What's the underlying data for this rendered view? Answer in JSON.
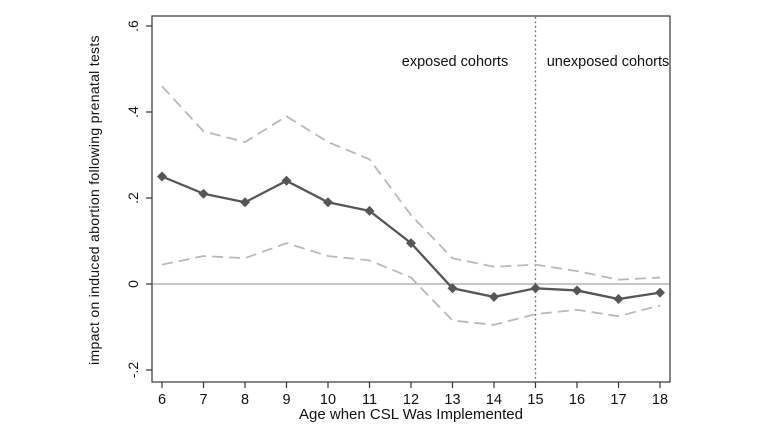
{
  "chart_data": {
    "type": "line",
    "title": "",
    "xlabel": "Age when CSL Was Implemented",
    "ylabel": "impact on induced abortion following prenatal tests",
    "x": [
      6,
      7,
      8,
      9,
      10,
      11,
      12,
      13,
      14,
      15,
      16,
      17,
      18
    ],
    "series": [
      {
        "name": "point-estimate",
        "style": "solid",
        "marker": "diamond",
        "color": "#565656",
        "values": [
          0.25,
          0.21,
          0.19,
          0.24,
          0.19,
          0.17,
          0.095,
          -0.01,
          -0.03,
          -0.01,
          -0.015,
          -0.035,
          -0.02
        ]
      },
      {
        "name": "upper-confidence-bound",
        "style": "dashed",
        "marker": "none",
        "color": "#b9b9b9",
        "values": [
          0.46,
          0.355,
          0.33,
          0.39,
          0.33,
          0.29,
          0.16,
          0.06,
          0.04,
          0.045,
          0.03,
          0.01,
          0.015
        ]
      },
      {
        "name": "lower-confidence-bound",
        "style": "dashed",
        "marker": "none",
        "color": "#b9b9b9",
        "values": [
          0.045,
          0.065,
          0.06,
          0.095,
          0.065,
          0.055,
          0.015,
          -0.085,
          -0.095,
          -0.07,
          -0.06,
          -0.075,
          -0.05
        ]
      }
    ],
    "xlim": [
      6,
      18
    ],
    "ylim": [
      -0.23,
      0.62
    ],
    "xtick_labels": [
      "6",
      "7",
      "8",
      "9",
      "10",
      "11",
      "12",
      "13",
      "14",
      "15",
      "16",
      "17",
      "18"
    ],
    "ytick_values": [
      0.6,
      0.4,
      0.2,
      0,
      -0.2
    ],
    "ytick_labels": [
      ".6",
      ".4",
      ".2",
      "0",
      "-.2"
    ],
    "grid": false,
    "legend": "none",
    "reference_lines": {
      "horizontal_y": 0,
      "vertical_x": 15,
      "vertical_style": "dotted"
    },
    "annotations": [
      {
        "text": "exposed cohorts",
        "x": 13.05,
        "y": 0.52
      },
      {
        "text": "unexposed cohorts",
        "x": 16.75,
        "y": 0.52
      }
    ]
  },
  "colors": {
    "background": "#ffffff",
    "frame": "#363636",
    "zero_line": "#8f8f8f",
    "cutoff_line": "#6b6b6b",
    "ci_line": "#b9b9b9",
    "main_line": "#565656",
    "text": "#111111"
  }
}
